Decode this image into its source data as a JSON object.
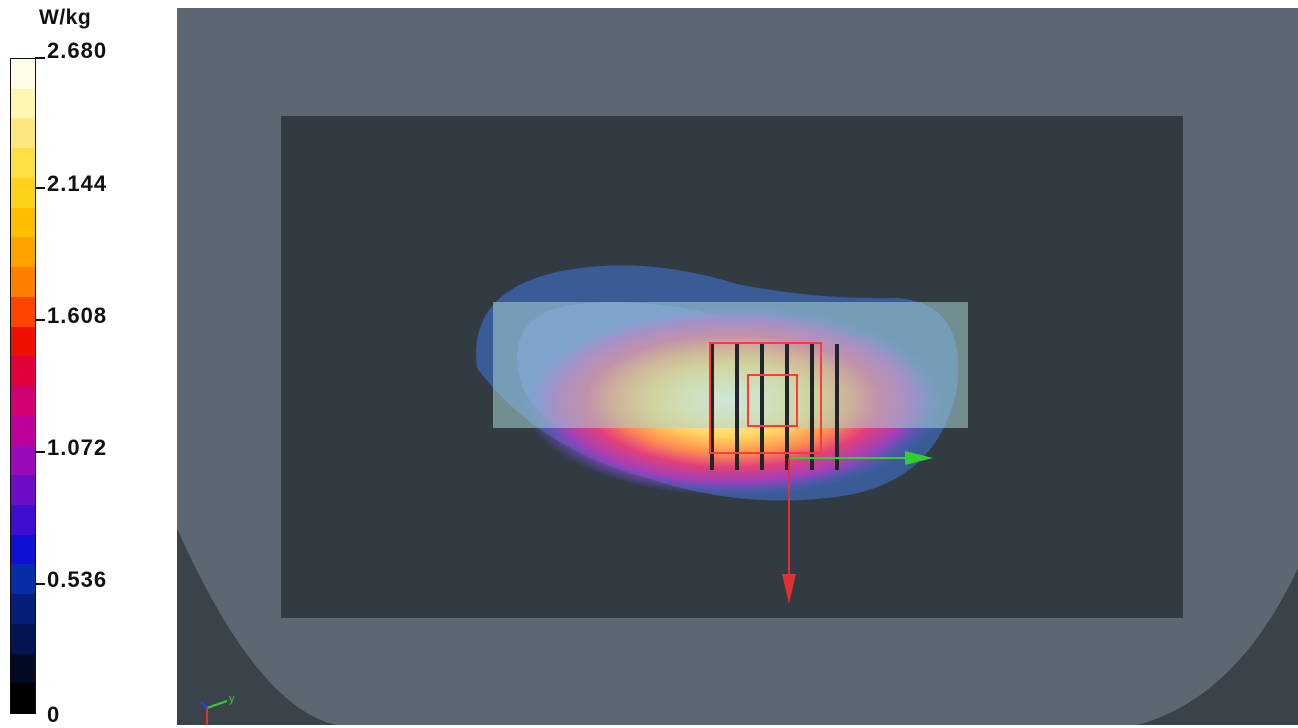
{
  "legend": {
    "unit": "W/kg",
    "labels": [
      "2.680",
      "2.144",
      "1.608",
      "1.072",
      "0.536",
      "0"
    ],
    "colors_top_to_bottom": [
      "#fffce8",
      "#fff6b2",
      "#ffe882",
      "#ffde46",
      "#ffd21c",
      "#ffbe00",
      "#ffa200",
      "#ff7d00",
      "#ff4400",
      "#ee1000",
      "#e0003a",
      "#d00070",
      "#be0098",
      "#9a0ab8",
      "#6e0cc6",
      "#3e0ed0",
      "#1010d2",
      "#082ca6",
      "#061e78",
      "#041450",
      "#020a24",
      "#000000"
    ]
  },
  "scene": {
    "colors": {
      "background_frame": "#6c7680",
      "phantom_outer": "#4b5560",
      "phantom_inner": "#303840",
      "scan_area": "#a8d0d0",
      "probe_outline": "#ff3030",
      "axis_x": "#30d030",
      "axis_y": "#e03030"
    },
    "axis_labels": {
      "y": "y"
    }
  }
}
